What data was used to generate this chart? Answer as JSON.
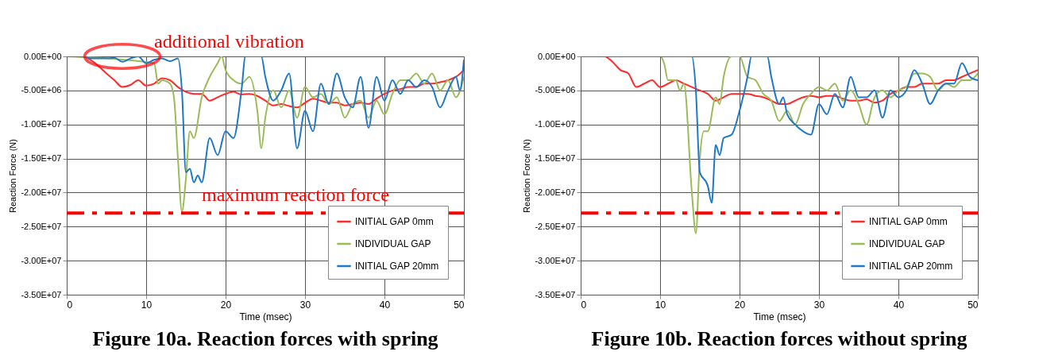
{
  "chart_data": [
    {
      "type": "line",
      "title": "Figure 10a. Reaction forces with spring",
      "xlabel": "Time (msec)",
      "ylabel": "Reaction Force (N)",
      "xlim": [
        0,
        50
      ],
      "xticks": [
        0,
        10,
        20,
        30,
        40,
        50
      ],
      "ylim": [
        -35000000.0,
        0
      ],
      "yticks": [
        {
          "value": 0,
          "label": "0.00E+00"
        },
        {
          "value": -5000000.0,
          "label": "-5.00E+06"
        },
        {
          "value": -10000000.0,
          "label": "-1.00E+07"
        },
        {
          "value": -15000000.0,
          "label": "-1.50E+07"
        },
        {
          "value": -20000000.0,
          "label": "-2.00E+07"
        },
        {
          "value": -25000000.0,
          "label": "-2.50E+07"
        },
        {
          "value": -30000000.0,
          "label": "-3.00E+07"
        },
        {
          "value": -35000000.0,
          "label": "-3.50E+07"
        }
      ],
      "grid": true,
      "legend": "bottom right",
      "annotations": [
        {
          "text": "additional vibration",
          "x": 7,
          "y": 0
        }
      ],
      "ref_lines": [
        {
          "axis": "y",
          "value": -23000000.0,
          "label": "maximum reaction force",
          "color": "#ff0000",
          "line_style": "dashdot"
        }
      ],
      "series": [
        {
          "name": "INITIAL GAP 0mm",
          "color": "#ff2a2a",
          "x": [
            0,
            2,
            3,
            5,
            6,
            7,
            8,
            9,
            10,
            11,
            12,
            13,
            14,
            15,
            16,
            17,
            18,
            19,
            20,
            21,
            22,
            23,
            24,
            25,
            26,
            27,
            28,
            29,
            30,
            31,
            32,
            33,
            34,
            35,
            36,
            37,
            38,
            39,
            40,
            41,
            42,
            43,
            44,
            45,
            46,
            47,
            48,
            49,
            50
          ],
          "values": [
            0,
            0,
            -500000.0,
            -2500000.0,
            -3500000.0,
            -4500000.0,
            -4200000.0,
            -3500000.0,
            -4300000.0,
            -4000000.0,
            -3200000.0,
            -3500000.0,
            -4500000.0,
            -5200000.0,
            -5500000.0,
            -5500000.0,
            -6500000.0,
            -6000000.0,
            -5500000.0,
            -5200000.0,
            -5600000.0,
            -5500000.0,
            -5800000.0,
            -6500000.0,
            -7200000.0,
            -7000000.0,
            -7300000.0,
            -7500000.0,
            -6800000.0,
            -6200000.0,
            -6500000.0,
            -6800000.0,
            -6800000.0,
            -7200000.0,
            -7000000.0,
            -6800000.0,
            -7000000.0,
            -6200000.0,
            -5500000.0,
            -5000000.0,
            -4800000.0,
            -4500000.0,
            -4500000.0,
            -4000000.0,
            -4000000.0,
            -3800000.0,
            -3500000.0,
            -3000000.0,
            -2000000.0
          ]
        },
        {
          "name": "INDIVIDUAL GAP",
          "color": "#9bbb59",
          "x": [
            0,
            11,
            11.5,
            12,
            13,
            13.5,
            14,
            14.5,
            15,
            15.5,
            16,
            17,
            18,
            19,
            19.5,
            20,
            21,
            22,
            23,
            24,
            24.5,
            25,
            26,
            27,
            28,
            29,
            30,
            31,
            32,
            33,
            34,
            35,
            36,
            37,
            38,
            39,
            40,
            41,
            42,
            43,
            44,
            45,
            46,
            47,
            48,
            49,
            50
          ],
          "values": [
            0,
            -1000000.0,
            -4000000.0,
            -3500000.0,
            -4000000.0,
            -6000000.0,
            -15000000.0,
            -22800000.0,
            -18000000.0,
            -11000000.0,
            -12000000.0,
            -6000000.0,
            -3000000.0,
            -1000000.0,
            0,
            -2000000.0,
            -3500000.0,
            -4000000.0,
            -3000000.0,
            -8000000.0,
            -13500000.0,
            -9000000.0,
            -5000000.0,
            -7500000.0,
            -5000000.0,
            -9000000.0,
            -4500000.0,
            -6000000.0,
            -5500000.0,
            -7000000.0,
            -6000000.0,
            -9000000.0,
            -7000000.0,
            -6500000.0,
            -9000000.0,
            -6500000.0,
            -8500000.0,
            -5500000.0,
            -3500000.0,
            -3500000.0,
            -2500000.0,
            -4000000.0,
            -2500000.0,
            -5000000.0,
            -3500000.0,
            -6000000.0,
            -3000000.0
          ]
        },
        {
          "name": "INITIAL GAP 20mm",
          "color": "#1f77c8",
          "x": [
            0,
            2,
            3,
            5,
            6,
            7,
            8,
            9,
            10,
            11,
            12,
            13,
            14,
            14.5,
            15,
            15.5,
            16,
            16.5,
            17,
            18,
            19,
            20,
            21,
            22,
            22.5,
            24.5,
            25,
            26,
            27,
            28,
            29,
            30,
            31,
            32,
            33,
            34,
            35,
            36,
            37,
            38,
            39,
            40,
            41,
            42,
            43,
            44,
            45,
            46,
            47,
            48,
            49,
            49.5,
            50
          ],
          "values": [
            0,
            0,
            -300000.0,
            -300000.0,
            -200000.0,
            -800000.0,
            -300000.0,
            0,
            -1000000.0,
            -500000.0,
            -300000.0,
            -700000.0,
            -300000.0,
            -5000000.0,
            -17000000.0,
            -16500000.0,
            -18500000.0,
            -17500000.0,
            -18500000.0,
            -12000000.0,
            -14500000.0,
            -11000000.0,
            -12000000.0,
            -5000000.0,
            0,
            0,
            -3000000.0,
            -6500000.0,
            -5000000.0,
            -2500000.0,
            -13500000.0,
            -8000000.0,
            -11000000.0,
            -4000000.0,
            -7000000.0,
            -2500000.0,
            -6000000.0,
            -7500000.0,
            -3000000.0,
            -10500000.0,
            -3000000.0,
            -6500000.0,
            -3500000.0,
            -5500000.0,
            -3500000.0,
            -4500000.0,
            -3500000.0,
            -4500000.0,
            -7500000.0,
            -5000000.0,
            -3000000.0,
            -5000000.0,
            -500000.0
          ]
        }
      ]
    },
    {
      "type": "line",
      "title": "Figure 10b. Reaction forces without spring",
      "xlabel": "Time (msec)",
      "ylabel": "Reaction Force (N)",
      "xlim": [
        0,
        50
      ],
      "xticks": [
        0,
        10,
        20,
        30,
        40,
        50
      ],
      "ylim": [
        -35000000.0,
        0
      ],
      "yticks": [
        {
          "value": 0,
          "label": "0.00E+00"
        },
        {
          "value": -5000000.0,
          "label": "-5.00E+06"
        },
        {
          "value": -10000000.0,
          "label": "-1.00E+07"
        },
        {
          "value": -15000000.0,
          "label": "-1.50E+07"
        },
        {
          "value": -20000000.0,
          "label": "-2.00E+07"
        },
        {
          "value": -25000000.0,
          "label": "-2.50E+07"
        },
        {
          "value": -30000000.0,
          "label": "-3.00E+07"
        },
        {
          "value": -35000000.0,
          "label": "-3.50E+07"
        }
      ],
      "grid": true,
      "legend": "bottom right",
      "ref_lines": [
        {
          "axis": "y",
          "value": -23000000.0,
          "color": "#ff0000",
          "line_style": "dashdot"
        }
      ],
      "series": [
        {
          "name": "INITIAL GAP 0mm",
          "color": "#ff2a2a",
          "x": [
            0,
            3,
            4,
            5,
            6,
            7,
            8,
            9,
            10,
            11,
            12,
            13,
            14,
            15,
            16,
            17,
            18,
            19,
            20,
            21,
            22,
            23,
            24,
            25,
            26,
            27,
            28,
            29,
            30,
            31,
            32,
            33,
            34,
            35,
            36,
            37,
            38,
            39,
            40,
            41,
            42,
            43,
            44,
            45,
            46,
            47,
            48,
            49,
            50
          ],
          "values": [
            0,
            0,
            -800000.0,
            -2000000.0,
            -2500000.0,
            -4500000.0,
            -4000000.0,
            -3500000.0,
            -4500000.0,
            -4000000.0,
            -3500000.0,
            -4000000.0,
            -4500000.0,
            -5000000.0,
            -5500000.0,
            -6500000.0,
            -6000000.0,
            -5500000.0,
            -5500000.0,
            -5500000.0,
            -5800000.0,
            -6000000.0,
            -6500000.0,
            -7000000.0,
            -7000000.0,
            -6500000.0,
            -6000000.0,
            -5800000.0,
            -6000000.0,
            -5800000.0,
            -5800000.0,
            -6200000.0,
            -6500000.0,
            -6500000.0,
            -6300000.0,
            -6800000.0,
            -6500000.0,
            -5500000.0,
            -5000000.0,
            -4500000.0,
            -4500000.0,
            -4000000.0,
            -4000000.0,
            -4000000.0,
            -3500000.0,
            -3500000.0,
            -3000000.0,
            -2500000.0,
            -2000000.0
          ]
        },
        {
          "name": "INDIVIDUAL GAP",
          "color": "#9bbb59",
          "x": [
            0,
            10,
            10.5,
            11,
            12,
            12.5,
            13,
            14,
            14.5,
            15,
            15.5,
            16,
            17,
            17.5,
            18,
            19,
            20,
            21,
            22,
            23,
            24,
            25,
            26,
            27,
            28,
            29,
            30,
            31,
            32,
            33,
            34,
            35,
            36,
            37,
            38,
            39,
            40,
            41,
            42,
            43,
            44,
            45,
            46,
            47,
            48,
            49,
            50
          ],
          "values": [
            0,
            0,
            -1000000.0,
            -3500000.0,
            -3500000.0,
            -5000000.0,
            -4000000.0,
            -20000000.0,
            -26000000.0,
            -15000000.0,
            -11000000.0,
            -11000000.0,
            -6000000.0,
            -7000000.0,
            -3000000.0,
            0,
            0,
            -3000000.0,
            -3500000.0,
            -5500000.0,
            -6500000.0,
            -9500000.0,
            -8000000.0,
            -10000000.0,
            -7000000.0,
            -5500000.0,
            -4500000.0,
            -5000000.0,
            -4000000.0,
            -6500000.0,
            -5000000.0,
            -7000000.0,
            -10000000.0,
            -6000000.0,
            -5000000.0,
            -6000000.0,
            -5000000.0,
            -4500000.0,
            -2500000.0,
            -2500000.0,
            -3000000.0,
            -5000000.0,
            -4000000.0,
            -4500000.0,
            -3500000.0,
            -3500000.0,
            -2500000.0
          ]
        },
        {
          "name": "INITIAL GAP 20mm",
          "color": "#1f77c8",
          "x": [
            0,
            14,
            14.5,
            15,
            16,
            16.5,
            17,
            17.5,
            18,
            19,
            20,
            21,
            21.5,
            23.5,
            24,
            25,
            25.5,
            26,
            27,
            28,
            29,
            30,
            31,
            32,
            33,
            34,
            35,
            36,
            37,
            38,
            39,
            40,
            41,
            42,
            43,
            44,
            45,
            46,
            47,
            48,
            49,
            50
          ],
          "values": [
            0,
            0,
            -5000000.0,
            -17000000.0,
            -19000000.0,
            -21500000.0,
            -13000000.0,
            -14500000.0,
            -12000000.0,
            -11500000.0,
            -8000000.0,
            -3000000.0,
            0,
            0,
            -3000000.0,
            -7000000.0,
            -6000000.0,
            -8500000.0,
            -10000000.0,
            -11000000.0,
            -11500000.0,
            -7000000.0,
            -8500000.0,
            -5500000.0,
            -7500000.0,
            -3000000.0,
            -6000000.0,
            -6000000.0,
            -5000000.0,
            -9000000.0,
            -5000000.0,
            -6000000.0,
            -5000000.0,
            -2000000.0,
            -4000000.0,
            -7000000.0,
            -5000000.0,
            -4000000.0,
            -4000000.0,
            -1000000.0,
            -3000000.0,
            -3500000.0
          ]
        }
      ]
    }
  ]
}
